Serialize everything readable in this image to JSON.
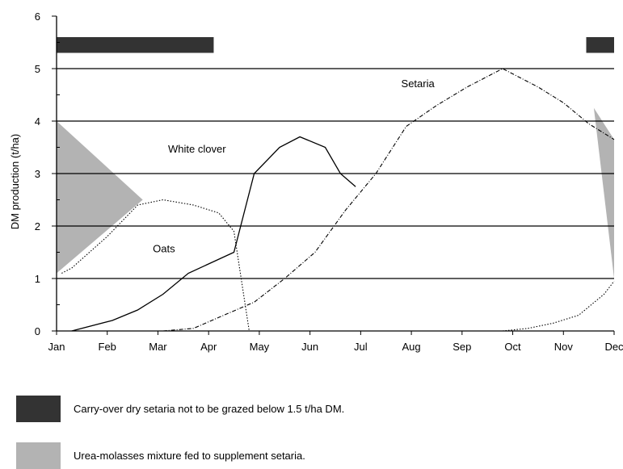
{
  "chart_data": {
    "type": "line",
    "title": "",
    "xlabel": "",
    "ylabel": "DM production (t/ha)",
    "ylim": [
      0,
      6
    ],
    "yticks": [
      "0",
      "1",
      "2",
      "3",
      "4",
      "5",
      "6"
    ],
    "categories": [
      "Jan",
      "Feb",
      "Mar",
      "Apr",
      "May",
      "Jun",
      "Jul",
      "Aug",
      "Sep",
      "Oct",
      "Nov",
      "Dec"
    ],
    "grid_lines_y": [
      1,
      2,
      3,
      4,
      5
    ],
    "series": [
      {
        "name": "White clover",
        "style": "solid",
        "color": "#000000",
        "x": [
          0.3,
          1.1,
          1.6,
          2.1,
          2.6,
          3.5,
          3.9,
          4.4,
          4.8,
          5.3,
          5.6,
          5.9
        ],
        "y": [
          0.0,
          0.2,
          0.4,
          0.7,
          1.1,
          1.5,
          3.0,
          3.5,
          3.7,
          3.5,
          3.0,
          2.75
        ]
      },
      {
        "name": "Oats",
        "style": "dotted",
        "color": "#000000",
        "x": [
          0.1,
          0.3,
          1.0,
          1.6,
          2.1,
          2.7,
          3.2,
          3.5,
          3.8
        ],
        "y": [
          1.1,
          1.2,
          1.8,
          2.4,
          2.5,
          2.4,
          2.25,
          1.9,
          0.0
        ]
      },
      {
        "name": "Setaria",
        "style": "dashdot",
        "color": "#000000",
        "x": [
          2.1,
          2.7,
          3.3,
          3.9,
          4.5,
          5.1,
          5.7,
          6.3,
          6.9,
          7.5,
          8.1,
          8.8,
          9.5,
          10.0,
          10.5,
          11.0
        ],
        "y": [
          0.0,
          0.05,
          0.3,
          0.55,
          1.0,
          1.5,
          2.3,
          3.0,
          3.9,
          4.3,
          4.65,
          5.0,
          4.65,
          4.35,
          3.95,
          3.65
        ]
      },
      {
        "name": "",
        "style": "dotted",
        "color": "#000000",
        "x": [
          8.8,
          9.3,
          9.8,
          10.3,
          10.8,
          11.0
        ],
        "y": [
          0.0,
          0.05,
          0.15,
          0.3,
          0.7,
          0.95
        ]
      }
    ],
    "shaded_regions": [
      {
        "legend_index": 1,
        "color": "#b3b3b3",
        "x": [
          0.0,
          1.7,
          0.0
        ],
        "y": [
          4.0,
          2.5,
          1.1
        ]
      },
      {
        "legend_index": 1,
        "color": "#b3b3b3",
        "x": [
          10.6,
          11.0,
          11.0
        ],
        "y": [
          4.25,
          3.65,
          1.0
        ]
      }
    ],
    "bars": [
      {
        "legend_index": 0,
        "color": "#333333",
        "x_start": 0.0,
        "x_end": 3.1,
        "y_low": 5.3,
        "y_high": 5.6
      },
      {
        "legend_index": 0,
        "color": "#333333",
        "x_start": 10.45,
        "x_end": 11.0,
        "y_low": 5.3,
        "y_high": 5.6
      }
    ],
    "annotations": [
      {
        "text": "White clover",
        "x": 2.2,
        "y": 3.4
      },
      {
        "text": "Oats",
        "x": 1.9,
        "y": 1.5
      },
      {
        "text": "Setaria",
        "x": 6.8,
        "y": 4.65
      }
    ],
    "legend": [
      {
        "label": "Carry-over dry setaria not to be grazed below 1.5 t/ha DM.",
        "color": "#333333"
      },
      {
        "label": "Urea-molasses mixture fed to supplement setaria.",
        "color": "#b3b3b3"
      }
    ],
    "legend_placement": "bottom"
  }
}
